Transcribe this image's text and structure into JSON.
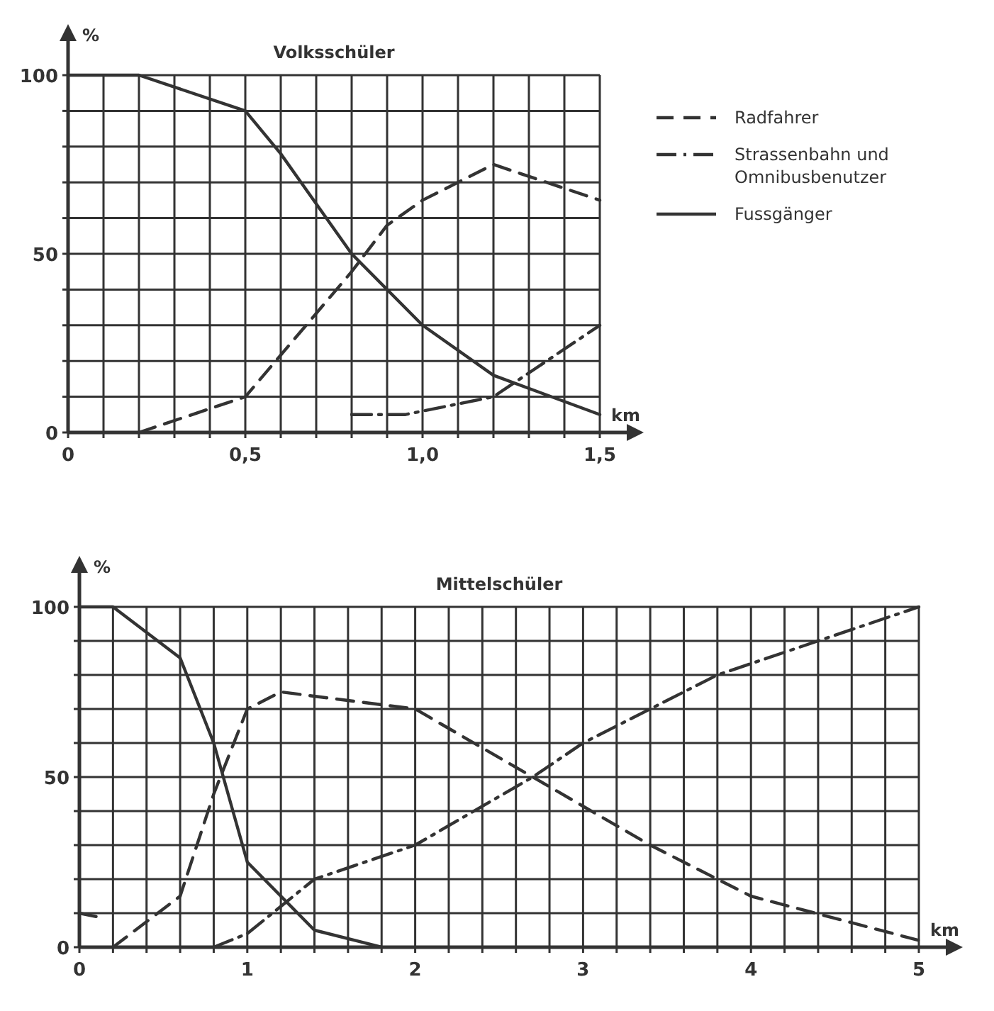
{
  "chart_data": [
    {
      "type": "line",
      "title": "Volksschüler",
      "ylabel": "%",
      "xlabel": "km",
      "legend": "right",
      "grid": true,
      "xlim": [
        0,
        1.5
      ],
      "ylim": [
        0,
        100
      ],
      "xticks": [
        0,
        {
          "value": 0.1,
          "label": null
        },
        {
          "value": 0.2,
          "label": null
        },
        {
          "value": 0.3,
          "label": null
        },
        {
          "value": 0.4,
          "label": null
        },
        {
          "value": 0.5,
          "label": "0,5"
        },
        {
          "value": 0.6,
          "label": null
        },
        {
          "value": 0.7,
          "label": null
        },
        {
          "value": 0.8,
          "label": null
        },
        {
          "value": 0.9,
          "label": null
        },
        {
          "value": 1.0,
          "label": "1,0"
        },
        {
          "value": 1.1,
          "label": null
        },
        {
          "value": 1.2,
          "label": null
        },
        {
          "value": 1.3,
          "label": null
        },
        {
          "value": 1.4,
          "label": null
        },
        {
          "value": 1.5,
          "label": "1,5"
        }
      ],
      "yticks": [
        0,
        {
          "value": 10,
          "label": null
        },
        {
          "value": 20,
          "label": null
        },
        {
          "value": 30,
          "label": null
        },
        {
          "value": 40,
          "label": null
        },
        50,
        {
          "value": 60,
          "label": null
        },
        {
          "value": 70,
          "label": null
        },
        {
          "value": 80,
          "label": null
        },
        {
          "value": 90,
          "label": null
        },
        100
      ],
      "series": [
        {
          "name": "Radfahrer",
          "color": "#333333",
          "line_style": "dashed",
          "x": [
            0.2,
            0.5,
            0.8,
            0.9,
            1.0,
            1.2,
            1.5
          ],
          "values": [
            0,
            10,
            45,
            58,
            65,
            75,
            65
          ]
        },
        {
          "name": "Strassenbahn und Omnibusbenutzer",
          "color": "#333333",
          "line_style": "dashdot",
          "x": [
            0.8,
            0.95,
            1.2,
            1.5
          ],
          "values": [
            5,
            5,
            10,
            30
          ]
        },
        {
          "name": "Fussgänger",
          "color": "#333333",
          "line_style": "solid",
          "x": [
            0,
            0.2,
            0.5,
            0.6,
            0.8,
            1.0,
            1.2,
            1.5
          ],
          "values": [
            100,
            100,
            90,
            78,
            50,
            30,
            16,
            5
          ]
        }
      ]
    },
    {
      "type": "line",
      "title": "Mittelschüler",
      "ylabel": "%",
      "xlabel": "km",
      "legend": false,
      "grid": true,
      "xlim": [
        0,
        5
      ],
      "ylim": [
        0,
        100
      ],
      "xticks": [
        0,
        {
          "value": 0.2,
          "label": null
        },
        {
          "value": 0.4,
          "label": null
        },
        {
          "value": 0.6,
          "label": null
        },
        {
          "value": 0.8,
          "label": null
        },
        1,
        {
          "value": 1.2,
          "label": null
        },
        {
          "value": 1.4,
          "label": null
        },
        {
          "value": 1.6,
          "label": null
        },
        {
          "value": 1.8,
          "label": null
        },
        2,
        {
          "value": 2.2,
          "label": null
        },
        {
          "value": 2.4,
          "label": null
        },
        {
          "value": 2.6,
          "label": null
        },
        {
          "value": 2.8,
          "label": null
        },
        3,
        {
          "value": 3.2,
          "label": null
        },
        {
          "value": 3.4,
          "label": null
        },
        {
          "value": 3.6,
          "label": null
        },
        {
          "value": 3.8,
          "label": null
        },
        4,
        {
          "value": 4.2,
          "label": null
        },
        {
          "value": 4.4,
          "label": null
        },
        {
          "value": 4.6,
          "label": null
        },
        {
          "value": 4.8,
          "label": null
        },
        5
      ],
      "yticks": [
        0,
        {
          "value": 10,
          "label": null
        },
        {
          "value": 20,
          "label": null
        },
        {
          "value": 30,
          "label": null
        },
        {
          "value": 40,
          "label": null
        },
        50,
        {
          "value": 60,
          "label": null
        },
        {
          "value": 70,
          "label": null
        },
        {
          "value": 80,
          "label": null
        },
        {
          "value": 90,
          "label": null
        },
        100
      ],
      "series": [
        {
          "color": "#333333",
          "line_style": "dashed",
          "x": [
            0,
            0.1,
            0.15,
            0.2,
            0.6,
            0.8,
            1.0,
            1.2,
            2.0,
            2.7,
            3.4,
            4.0,
            5.0
          ],
          "values": [
            10,
            9,
            null,
            0,
            15,
            45,
            70,
            75,
            70,
            50,
            30,
            15,
            2
          ]
        },
        {
          "color": "#333333",
          "line_style": "dashdot",
          "x": [
            0.8,
            1.0,
            1.4,
            2.0,
            2.7,
            3.0,
            3.8,
            4.4,
            5.0
          ],
          "values": [
            0,
            4,
            20,
            30,
            50,
            60,
            80,
            90,
            100
          ]
        },
        {
          "color": "#333333",
          "line_style": "solid",
          "x": [
            0,
            0.2,
            0.6,
            0.8,
            1.0,
            1.4,
            1.8
          ],
          "values": [
            100,
            100,
            85,
            60,
            25,
            5,
            0
          ]
        }
      ]
    }
  ]
}
